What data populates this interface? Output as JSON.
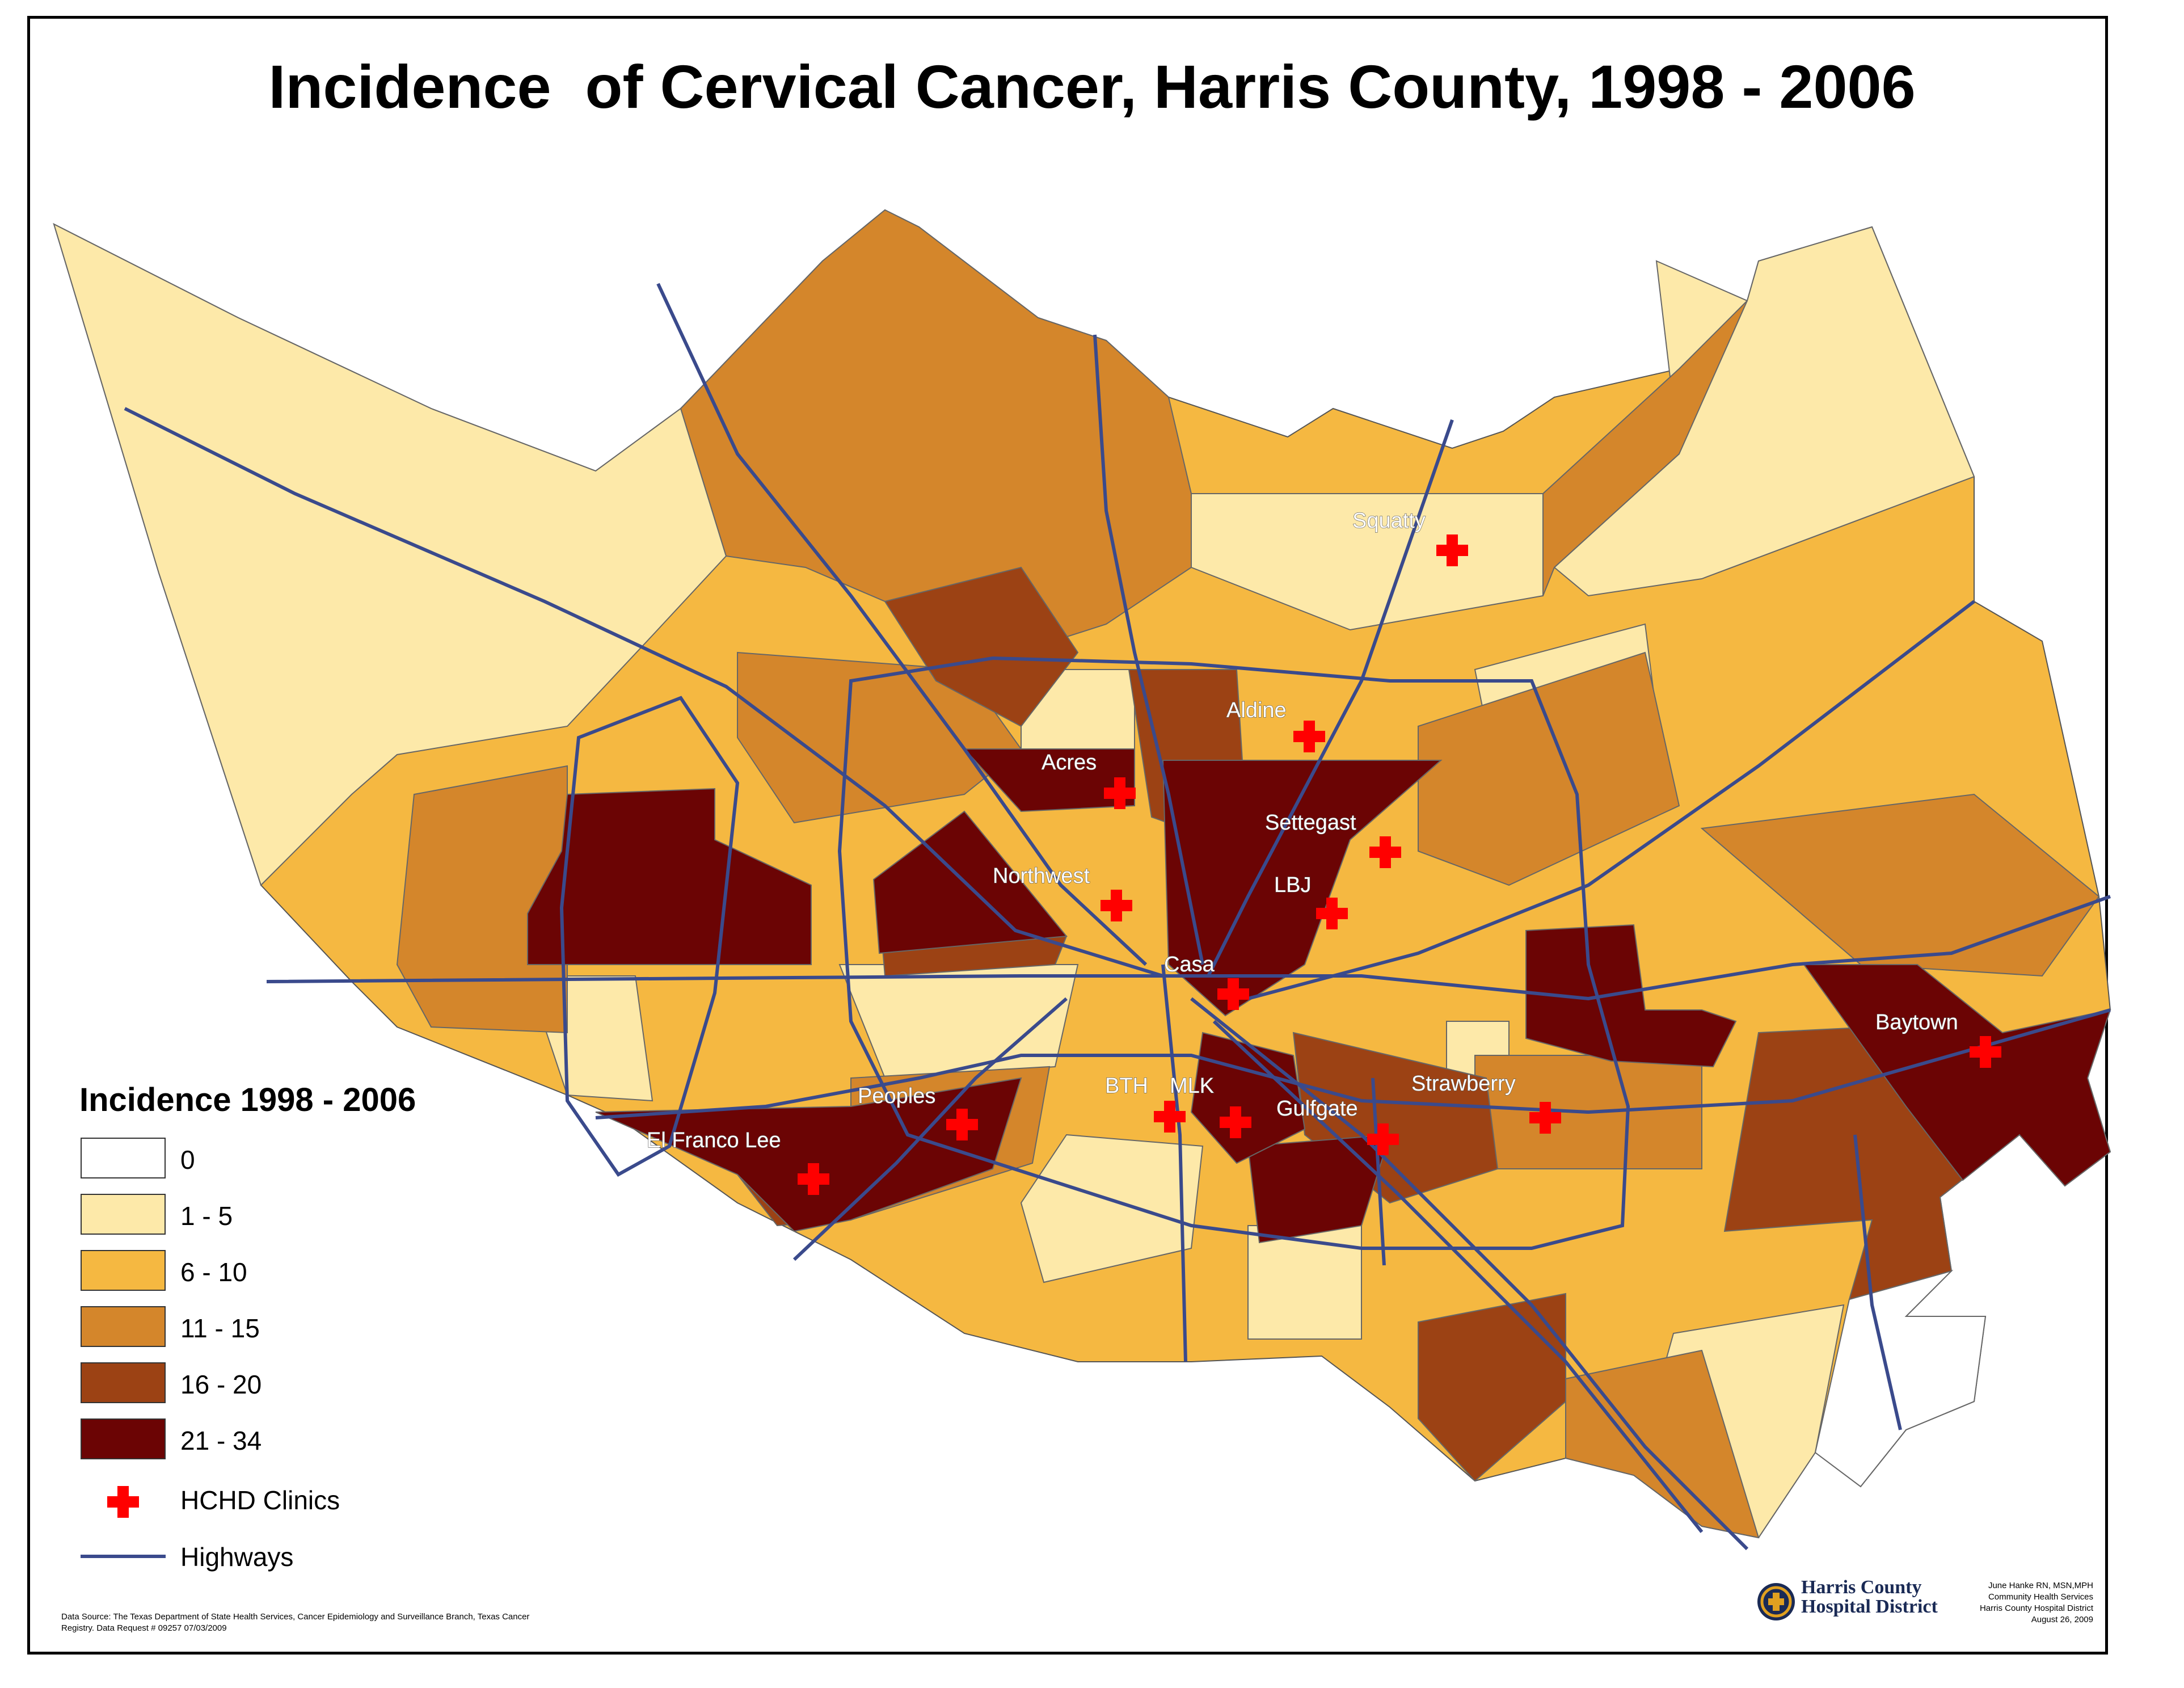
{
  "title": "Incidence  of Cervical Cancer, Harris County, 1998 - 2006",
  "colors": {
    "c0": "#ffffff",
    "c1": "#fde9a9",
    "c2": "#f5b841",
    "c3": "#d4862b",
    "c4": "#9c4214",
    "c5": "#6b0404",
    "highway": "#3a4a8c",
    "clinic": "#ff0000"
  },
  "legend": {
    "title": "Incidence 1998 - 2006",
    "classes": [
      {
        "label": "0",
        "color": "#ffffff"
      },
      {
        "label": "1 - 5",
        "color": "#fde9a9"
      },
      {
        "label": "6 - 10",
        "color": "#f5b841"
      },
      {
        "label": "11 - 15",
        "color": "#d4862b"
      },
      {
        "label": "16 - 20",
        "color": "#9c4214"
      },
      {
        "label": "21 - 34",
        "color": "#6b0404"
      }
    ],
    "clinics_label": "HCHD Clinics",
    "highways_label": "Highways"
  },
  "clinics": [
    {
      "name": "Squatty"
    },
    {
      "name": "Aldine"
    },
    {
      "name": "Acres"
    },
    {
      "name": "Settegast"
    },
    {
      "name": "Northwest"
    },
    {
      "name": "LBJ"
    },
    {
      "name": "Casa"
    },
    {
      "name": "Peoples"
    },
    {
      "name": "BTH"
    },
    {
      "name": "MLK"
    },
    {
      "name": "Gulfgate"
    },
    {
      "name": "Strawberry"
    },
    {
      "name": "El Franco Lee"
    },
    {
      "name": "Baytown"
    }
  ],
  "source": {
    "line1": "Data Source: The Texas Department of State Health Services, Cancer Epidemiology and  Surveillance Branch, Texas Cancer",
    "line2": "Registry.  Data Request # 09257 07/03/2009"
  },
  "logo": {
    "line1": "Harris County",
    "line2": "Hospital District"
  },
  "credits": [
    "June Hanke RN, MSN,MPH",
    "Community Health Services",
    "Harris County Hospital District",
    "August 26, 2009"
  ]
}
